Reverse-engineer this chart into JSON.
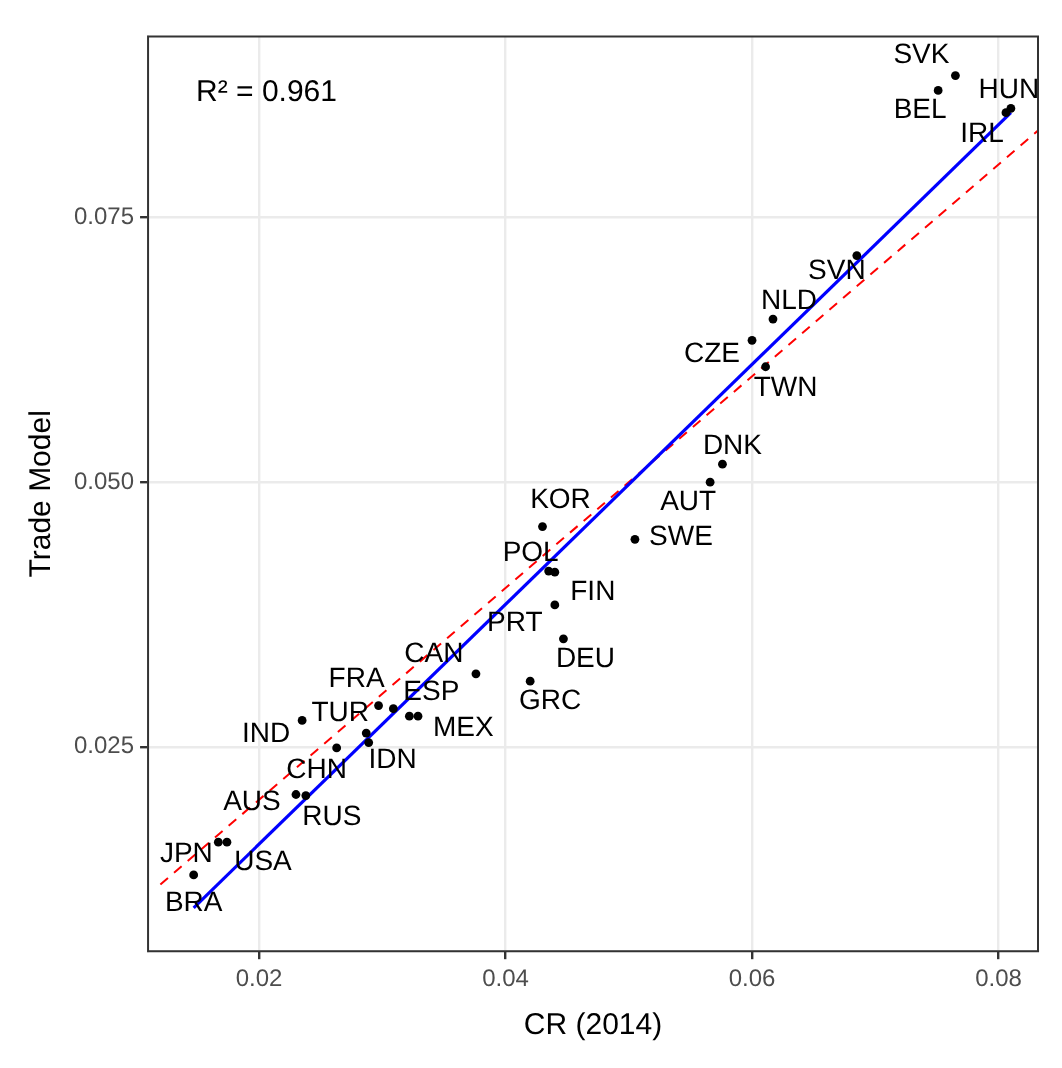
{
  "chart_data": {
    "type": "scatter",
    "xlabel": "CR (2014)",
    "ylabel": "Trade Model",
    "xlim": [
      0.011,
      0.0832
    ],
    "ylim": [
      0.0057,
      0.0921
    ],
    "xticks": [
      {
        "value": 0.02,
        "label": "0.02"
      },
      {
        "value": 0.04,
        "label": "0.04"
      },
      {
        "value": 0.06,
        "label": "0.06"
      },
      {
        "value": 0.08,
        "label": "0.08"
      }
    ],
    "yticks": [
      {
        "value": 0.025,
        "label": "0.025"
      },
      {
        "value": 0.05,
        "label": "0.050"
      },
      {
        "value": 0.075,
        "label": "0.075"
      }
    ],
    "grid": true,
    "legend": false,
    "marker": "circle",
    "series": [
      {
        "type": "scatter",
        "color": "#000000",
        "x": [
          0.0147,
          0.0167,
          0.0174,
          0.023,
          0.0238,
          0.0263,
          0.0235,
          0.0287,
          0.0289,
          0.0297,
          0.0309,
          0.0322,
          0.0329,
          0.0376,
          0.042,
          0.0447,
          0.0435,
          0.044,
          0.044,
          0.043,
          0.0505,
          0.0566,
          0.0576,
          0.0611,
          0.06,
          0.0617,
          0.0685,
          0.0751,
          0.0765,
          0.081,
          0.0806
        ],
        "values": [
          0.0129,
          0.016,
          0.016,
          0.0205,
          0.0204,
          0.0249,
          0.0275,
          0.0263,
          0.0254,
          0.0289,
          0.0286,
          0.0279,
          0.0279,
          0.0319,
          0.0312,
          0.0352,
          0.0416,
          0.0415,
          0.0384,
          0.0458,
          0.0446,
          0.05,
          0.0517,
          0.0609,
          0.0634,
          0.0654,
          0.0714,
          0.087,
          0.0884,
          0.0853,
          0.0849
        ]
      },
      {
        "type": "line",
        "color": "#0000ff",
        "marker": "none",
        "line_style": "solid",
        "x": [
          0.0147,
          0.081
        ],
        "values": [
          0.0098,
          0.0849
        ]
      },
      {
        "type": "line",
        "color": "#ff0000",
        "marker": "none",
        "line_style": "dashed",
        "x": [
          0.012,
          0.0832
        ],
        "values": [
          0.012,
          0.0832
        ]
      }
    ],
    "annotations": [
      "R² = 0.961",
      {
        "text": "BRA",
        "x": 0.0147,
        "y": 0.0129
      },
      {
        "text": "JPN",
        "x": 0.0167,
        "y": 0.016
      },
      {
        "text": "USA",
        "x": 0.0174,
        "y": 0.016
      },
      {
        "text": "AUS",
        "x": 0.023,
        "y": 0.0205
      },
      {
        "text": "RUS",
        "x": 0.0238,
        "y": 0.0204
      },
      {
        "text": "CHN",
        "x": 0.0263,
        "y": 0.0249
      },
      {
        "text": "IND",
        "x": 0.0235,
        "y": 0.0275
      },
      {
        "text": "TUR",
        "x": 0.0287,
        "y": 0.0263
      },
      {
        "text": "IDN",
        "x": 0.0289,
        "y": 0.0254
      },
      {
        "text": "FRA",
        "x": 0.0297,
        "y": 0.0289
      },
      {
        "text": "ESP",
        "x": 0.0309,
        "y": 0.0286
      },
      {
        "text": "MEX",
        "x": 0.0322,
        "y": 0.0279
      },
      {
        "text": "CAN",
        "x": 0.0376,
        "y": 0.0319
      },
      {
        "text": "GRC",
        "x": 0.042,
        "y": 0.0312
      },
      {
        "text": "DEU",
        "x": 0.0447,
        "y": 0.0352
      },
      {
        "text": "POL",
        "x": 0.0435,
        "y": 0.0416
      },
      {
        "text": "FIN",
        "x": 0.044,
        "y": 0.0415
      },
      {
        "text": "PRT",
        "x": 0.044,
        "y": 0.0384
      },
      {
        "text": "KOR",
        "x": 0.043,
        "y": 0.0458
      },
      {
        "text": "SWE",
        "x": 0.0505,
        "y": 0.0446
      },
      {
        "text": "AUT",
        "x": 0.0566,
        "y": 0.05
      },
      {
        "text": "DNK",
        "x": 0.0576,
        "y": 0.0517
      },
      {
        "text": "TWN",
        "x": 0.0611,
        "y": 0.0609
      },
      {
        "text": "CZE",
        "x": 0.06,
        "y": 0.0634
      },
      {
        "text": "NLD",
        "x": 0.0617,
        "y": 0.0654
      },
      {
        "text": "SVN",
        "x": 0.0685,
        "y": 0.0714
      },
      {
        "text": "BEL",
        "x": 0.0751,
        "y": 0.087
      },
      {
        "text": "SVK",
        "x": 0.0765,
        "y": 0.0884
      },
      {
        "text": "HUN",
        "x": 0.081,
        "y": 0.0853
      },
      {
        "text": "IRL",
        "x": 0.0806,
        "y": 0.0849
      }
    ]
  }
}
